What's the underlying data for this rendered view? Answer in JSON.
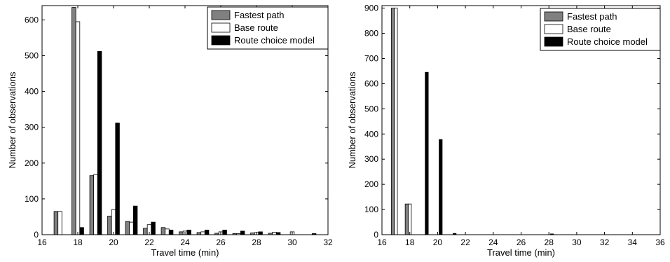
{
  "chart_data": [
    {
      "type": "bar",
      "xlabel": "Travel time (min)",
      "ylabel": "Number of observations",
      "xlim": [
        16,
        32
      ],
      "ylim": [
        0,
        640
      ],
      "xticks": [
        16,
        18,
        20,
        22,
        24,
        26,
        28,
        30,
        32
      ],
      "yticks": [
        0,
        100,
        200,
        300,
        400,
        500,
        600
      ],
      "grid": false,
      "legend_position": "top-right",
      "x": [
        17,
        18,
        19,
        20,
        21,
        22,
        23,
        24,
        25,
        26,
        27,
        28,
        29,
        30,
        31
      ],
      "series": [
        {
          "name": "Fastest path",
          "color": "#808080",
          "values": [
            65,
            635,
            165,
            52,
            37,
            18,
            20,
            8,
            6,
            4,
            3,
            5,
            4,
            0,
            0
          ]
        },
        {
          "name": "Base route",
          "color": "#ffffff",
          "values": [
            65,
            595,
            168,
            70,
            35,
            28,
            16,
            10,
            8,
            8,
            3,
            6,
            7,
            8,
            0
          ]
        },
        {
          "name": "Route choice model",
          "color": "#000000",
          "values": [
            0,
            20,
            512,
            312,
            80,
            35,
            13,
            13,
            13,
            13,
            10,
            8,
            6,
            0,
            3
          ]
        }
      ]
    },
    {
      "type": "bar",
      "xlabel": "Travel time (min)",
      "ylabel": "Number of observations",
      "xlim": [
        16,
        36
      ],
      "ylim": [
        0,
        910
      ],
      "xticks": [
        16,
        18,
        20,
        22,
        24,
        26,
        28,
        30,
        32,
        34,
        36
      ],
      "yticks": [
        0,
        100,
        200,
        300,
        400,
        500,
        600,
        700,
        800,
        900
      ],
      "grid": false,
      "legend_position": "top-right",
      "x": [
        17,
        18,
        19,
        20,
        21,
        28
      ],
      "series": [
        {
          "name": "Fastest path",
          "color": "#808080",
          "values": [
            900,
            122,
            0,
            0,
            0,
            0
          ]
        },
        {
          "name": "Base route",
          "color": "#ffffff",
          "values": [
            900,
            122,
            0,
            0,
            0,
            0
          ]
        },
        {
          "name": "Route choice model",
          "color": "#000000",
          "values": [
            0,
            0,
            645,
            378,
            5,
            3
          ]
        }
      ]
    }
  ]
}
